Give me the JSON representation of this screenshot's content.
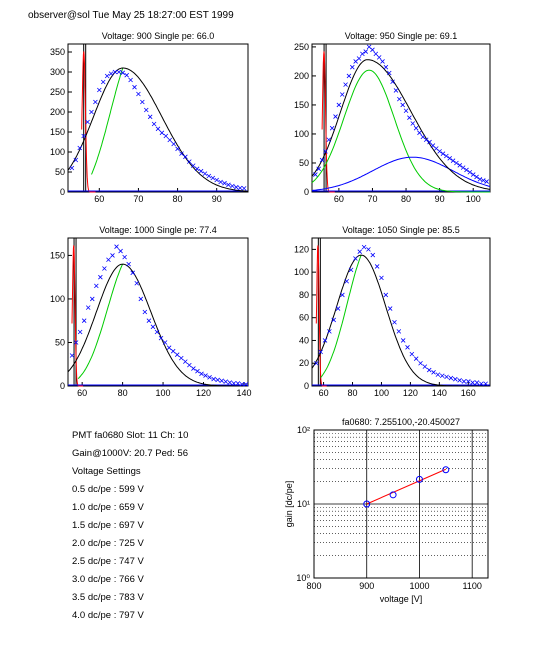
{
  "header": "observer@sol  Tue May 25 18:27:00 EST 1999",
  "info": {
    "line1": "PMT fa0680 Slot: 11 Ch: 10",
    "line2": "Gain@1000V: 20.7 Ped: 56",
    "line3": "Voltage Settings",
    "settings": [
      "0.5 dc/pe : 599 V",
      "1.0 dc/pe : 659 V",
      "1.5 dc/pe : 697 V",
      "2.0 dc/pe : 725 V",
      "2.5 dc/pe : 747 V",
      "3.0 dc/pe : 766 V",
      "3.5 dc/pe : 783 V",
      "4.0 dc/pe : 797 V"
    ]
  },
  "colors": {
    "data": "#0000ff",
    "fit": "#000000",
    "gauss": "#00cc00",
    "secondary": "#0000ff",
    "ped": "#ff0000",
    "gainfit": "#ff0000"
  },
  "chart_data": [
    {
      "type": "scatter",
      "title": "Voltage: 900 Single pe: 66.0",
      "xlim": [
        52,
        98
      ],
      "ylim": [
        0,
        370
      ],
      "xticks": [
        60,
        70,
        80,
        90
      ],
      "yticks": [
        0,
        50,
        100,
        150,
        200,
        250,
        300,
        350
      ],
      "ped_x": [
        55.5,
        57.5
      ],
      "fit_peak": [
        66,
        310
      ],
      "fit_sigma": [
        7.5,
        10
      ],
      "gauss_end": [
        58,
        66
      ],
      "points_x": [
        53,
        54,
        55,
        56,
        57,
        58,
        59,
        60,
        61,
        62,
        63,
        64,
        65,
        66,
        67,
        68,
        69,
        70,
        71,
        72,
        73,
        74,
        75,
        76,
        77,
        78,
        79,
        80,
        81,
        82,
        83,
        84,
        85,
        86,
        87,
        88,
        89,
        90,
        91,
        92,
        93,
        94,
        95,
        96,
        97
      ],
      "points_y": [
        60,
        80,
        110,
        140,
        175,
        200,
        225,
        255,
        275,
        290,
        296,
        300,
        300,
        298,
        292,
        280,
        262,
        245,
        225,
        205,
        188,
        170,
        158,
        148,
        140,
        130,
        120,
        108,
        96,
        88,
        76,
        66,
        58,
        52,
        46,
        40,
        35,
        30,
        25,
        22,
        18,
        15,
        12,
        10,
        9
      ]
    },
    {
      "type": "scatter",
      "title": "Voltage: 950 Single pe: 69.1",
      "xlim": [
        52,
        105
      ],
      "ylim": [
        0,
        255
      ],
      "xticks": [
        60,
        70,
        80,
        90,
        100
      ],
      "yticks": [
        0,
        50,
        100,
        150,
        200,
        250
      ],
      "ped_x": [
        55,
        57
      ],
      "fit_peak": [
        68.5,
        228
      ],
      "fit_sigma": [
        8,
        13
      ],
      "gauss_peak": [
        69,
        210
      ],
      "gauss_sigma": 7.5,
      "secondary_peak": [
        82,
        60
      ],
      "secondary_sigma": 12,
      "points_x": [
        53,
        54,
        55,
        56,
        57,
        58,
        59,
        60,
        61,
        62,
        63,
        64,
        65,
        66,
        67,
        68,
        69,
        70,
        71,
        72,
        73,
        74,
        75,
        76,
        77,
        78,
        79,
        80,
        81,
        82,
        83,
        84,
        85,
        86,
        87,
        88,
        89,
        90,
        91,
        92,
        93,
        94,
        95,
        96,
        97,
        98,
        99,
        100,
        101,
        102,
        103,
        104
      ],
      "points_y": [
        30,
        40,
        55,
        70,
        90,
        110,
        130,
        150,
        168,
        185,
        200,
        215,
        225,
        230,
        238,
        242,
        250,
        245,
        238,
        232,
        225,
        215,
        205,
        190,
        175,
        160,
        150,
        140,
        128,
        118,
        110,
        102,
        95,
        90,
        86,
        80,
        75,
        70,
        66,
        62,
        58,
        54,
        50,
        46,
        42,
        38,
        34,
        30,
        26,
        22,
        20,
        18
      ]
    },
    {
      "type": "scatter",
      "title": "Voltage: 1000 Single pe: 77.4",
      "xlim": [
        53,
        142
      ],
      "ylim": [
        0,
        170
      ],
      "xticks": [
        60,
        80,
        100,
        120,
        140
      ],
      "yticks": [
        0,
        50,
        100,
        150
      ],
      "ped_x": [
        55,
        57.5
      ],
      "fit_peak": [
        80,
        140
      ],
      "fit_sigma": [
        13,
        14
      ],
      "gauss_end": [
        58,
        80
      ],
      "points_x": [
        55,
        57,
        59,
        61,
        63,
        65,
        67,
        69,
        71,
        73,
        75,
        77,
        79,
        81,
        83,
        85,
        87,
        89,
        91,
        93,
        95,
        97,
        99,
        101,
        103,
        105,
        107,
        109,
        111,
        113,
        115,
        117,
        119,
        121,
        123,
        125,
        127,
        129,
        131,
        133,
        135,
        137,
        139,
        141
      ],
      "points_y": [
        35,
        50,
        62,
        75,
        90,
        100,
        115,
        125,
        135,
        145,
        150,
        160,
        155,
        148,
        140,
        130,
        118,
        100,
        85,
        75,
        68,
        62,
        55,
        50,
        44,
        40,
        36,
        32,
        28,
        24,
        20,
        17,
        14,
        12,
        10,
        8,
        7,
        6,
        5,
        4,
        3,
        3,
        2,
        2
      ]
    },
    {
      "type": "scatter",
      "title": "Voltage: 1050 Single pe: 85.5",
      "xlim": [
        52,
        175
      ],
      "ylim": [
        0,
        130
      ],
      "xticks": [
        60,
        80,
        100,
        120,
        140,
        160
      ],
      "yticks": [
        0,
        20,
        40,
        60,
        80,
        100,
        120
      ],
      "ped_x": [
        55,
        58
      ],
      "fit_peak": [
        86,
        115
      ],
      "fit_sigma": [
        17,
        17
      ],
      "gauss_end": [
        58,
        86
      ],
      "points_x": [
        55,
        58,
        61,
        64,
        67,
        70,
        73,
        76,
        79,
        82,
        85,
        88,
        91,
        94,
        97,
        100,
        103,
        106,
        109,
        112,
        115,
        118,
        121,
        124,
        127,
        130,
        133,
        136,
        139,
        142,
        145,
        148,
        151,
        154,
        157,
        160,
        163,
        166,
        169,
        172
      ],
      "points_y": [
        20,
        30,
        40,
        48,
        58,
        68,
        80,
        92,
        102,
        112,
        118,
        122,
        120,
        115,
        105,
        95,
        80,
        68,
        56,
        48,
        40,
        34,
        28,
        24,
        20,
        17,
        14,
        12,
        10,
        9,
        8,
        7,
        6,
        5,
        4,
        4,
        3,
        3,
        2,
        2
      ]
    },
    {
      "type": "line",
      "title": "fa0680: 7.255100,-20.450027",
      "xlabel": "voltage [V]",
      "ylabel": "gain [dc/pe]",
      "xlim": [
        800,
        1130
      ],
      "ylim": [
        1,
        100
      ],
      "yscale": "log",
      "xticks": [
        800,
        900,
        1000,
        1100
      ],
      "yticks_labels": [
        "10⁰",
        "10¹",
        "10²"
      ],
      "points_x": [
        900,
        950,
        1000,
        1050
      ],
      "points_y": [
        10,
        13.3,
        21.5,
        29.0
      ],
      "fit_x": [
        900,
        1050
      ],
      "fit_y": [
        10,
        29.5
      ]
    }
  ]
}
